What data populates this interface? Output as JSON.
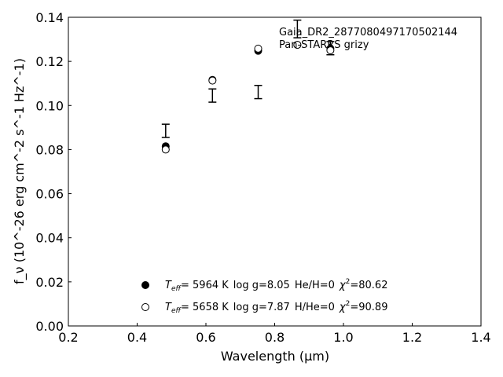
{
  "chart_data": {
    "type": "scatter",
    "xlabel": "Wavelength (μm)",
    "ylabel": "f_ν (10^-26 erg cm^-2 s^-1 Hz^-1)",
    "xlim": [
      0.2,
      1.4
    ],
    "ylim": [
      0.0,
      0.14
    ],
    "xticks": [
      "0.2",
      "0.4",
      "0.6",
      "0.8",
      "1.0",
      "1.2",
      "1.4"
    ],
    "yticks": [
      "0.00",
      "0.02",
      "0.04",
      "0.06",
      "0.08",
      "0.10",
      "0.12",
      "0.14"
    ],
    "grid": false,
    "annotation_lines": [
      "Gaia_DR2_2877080497170502144",
      "Pan-STARRS grizy"
    ],
    "observed": {
      "x": [
        0.483,
        0.619,
        0.752,
        0.866,
        0.962
      ],
      "y": [
        0.0885,
        0.1045,
        0.1061,
        0.1347,
        0.126
      ],
      "yerr": [
        0.003,
        0.003,
        0.003,
        0.004,
        0.003
      ]
    },
    "series": [
      {
        "marker": "filled",
        "x": [
          0.483,
          0.619,
          0.752,
          0.866,
          0.962
        ],
        "y": [
          0.0815,
          0.1116,
          0.1248,
          0.1275,
          0.1258
        ],
        "legend": {
          "teff_label": "T",
          "teff_sub": "eff",
          "teff": "=  5964 K",
          "logg": "log g=8.05",
          "comp": "He/H=0",
          "chi_label": "χ",
          "chi_sup": "2",
          "chi": "=80.62"
        }
      },
      {
        "marker": "open",
        "x": [
          0.483,
          0.619,
          0.752,
          0.866,
          0.962
        ],
        "y": [
          0.08,
          0.1113,
          0.1258,
          0.1275,
          0.125
        ],
        "legend": {
          "teff_label": "T",
          "teff_sub": "eff",
          "teff": "=  5658 K",
          "logg": "log g=7.87",
          "comp": "H/He=0",
          "chi_label": "χ",
          "chi_sup": "2",
          "chi": "=90.89"
        }
      }
    ]
  }
}
